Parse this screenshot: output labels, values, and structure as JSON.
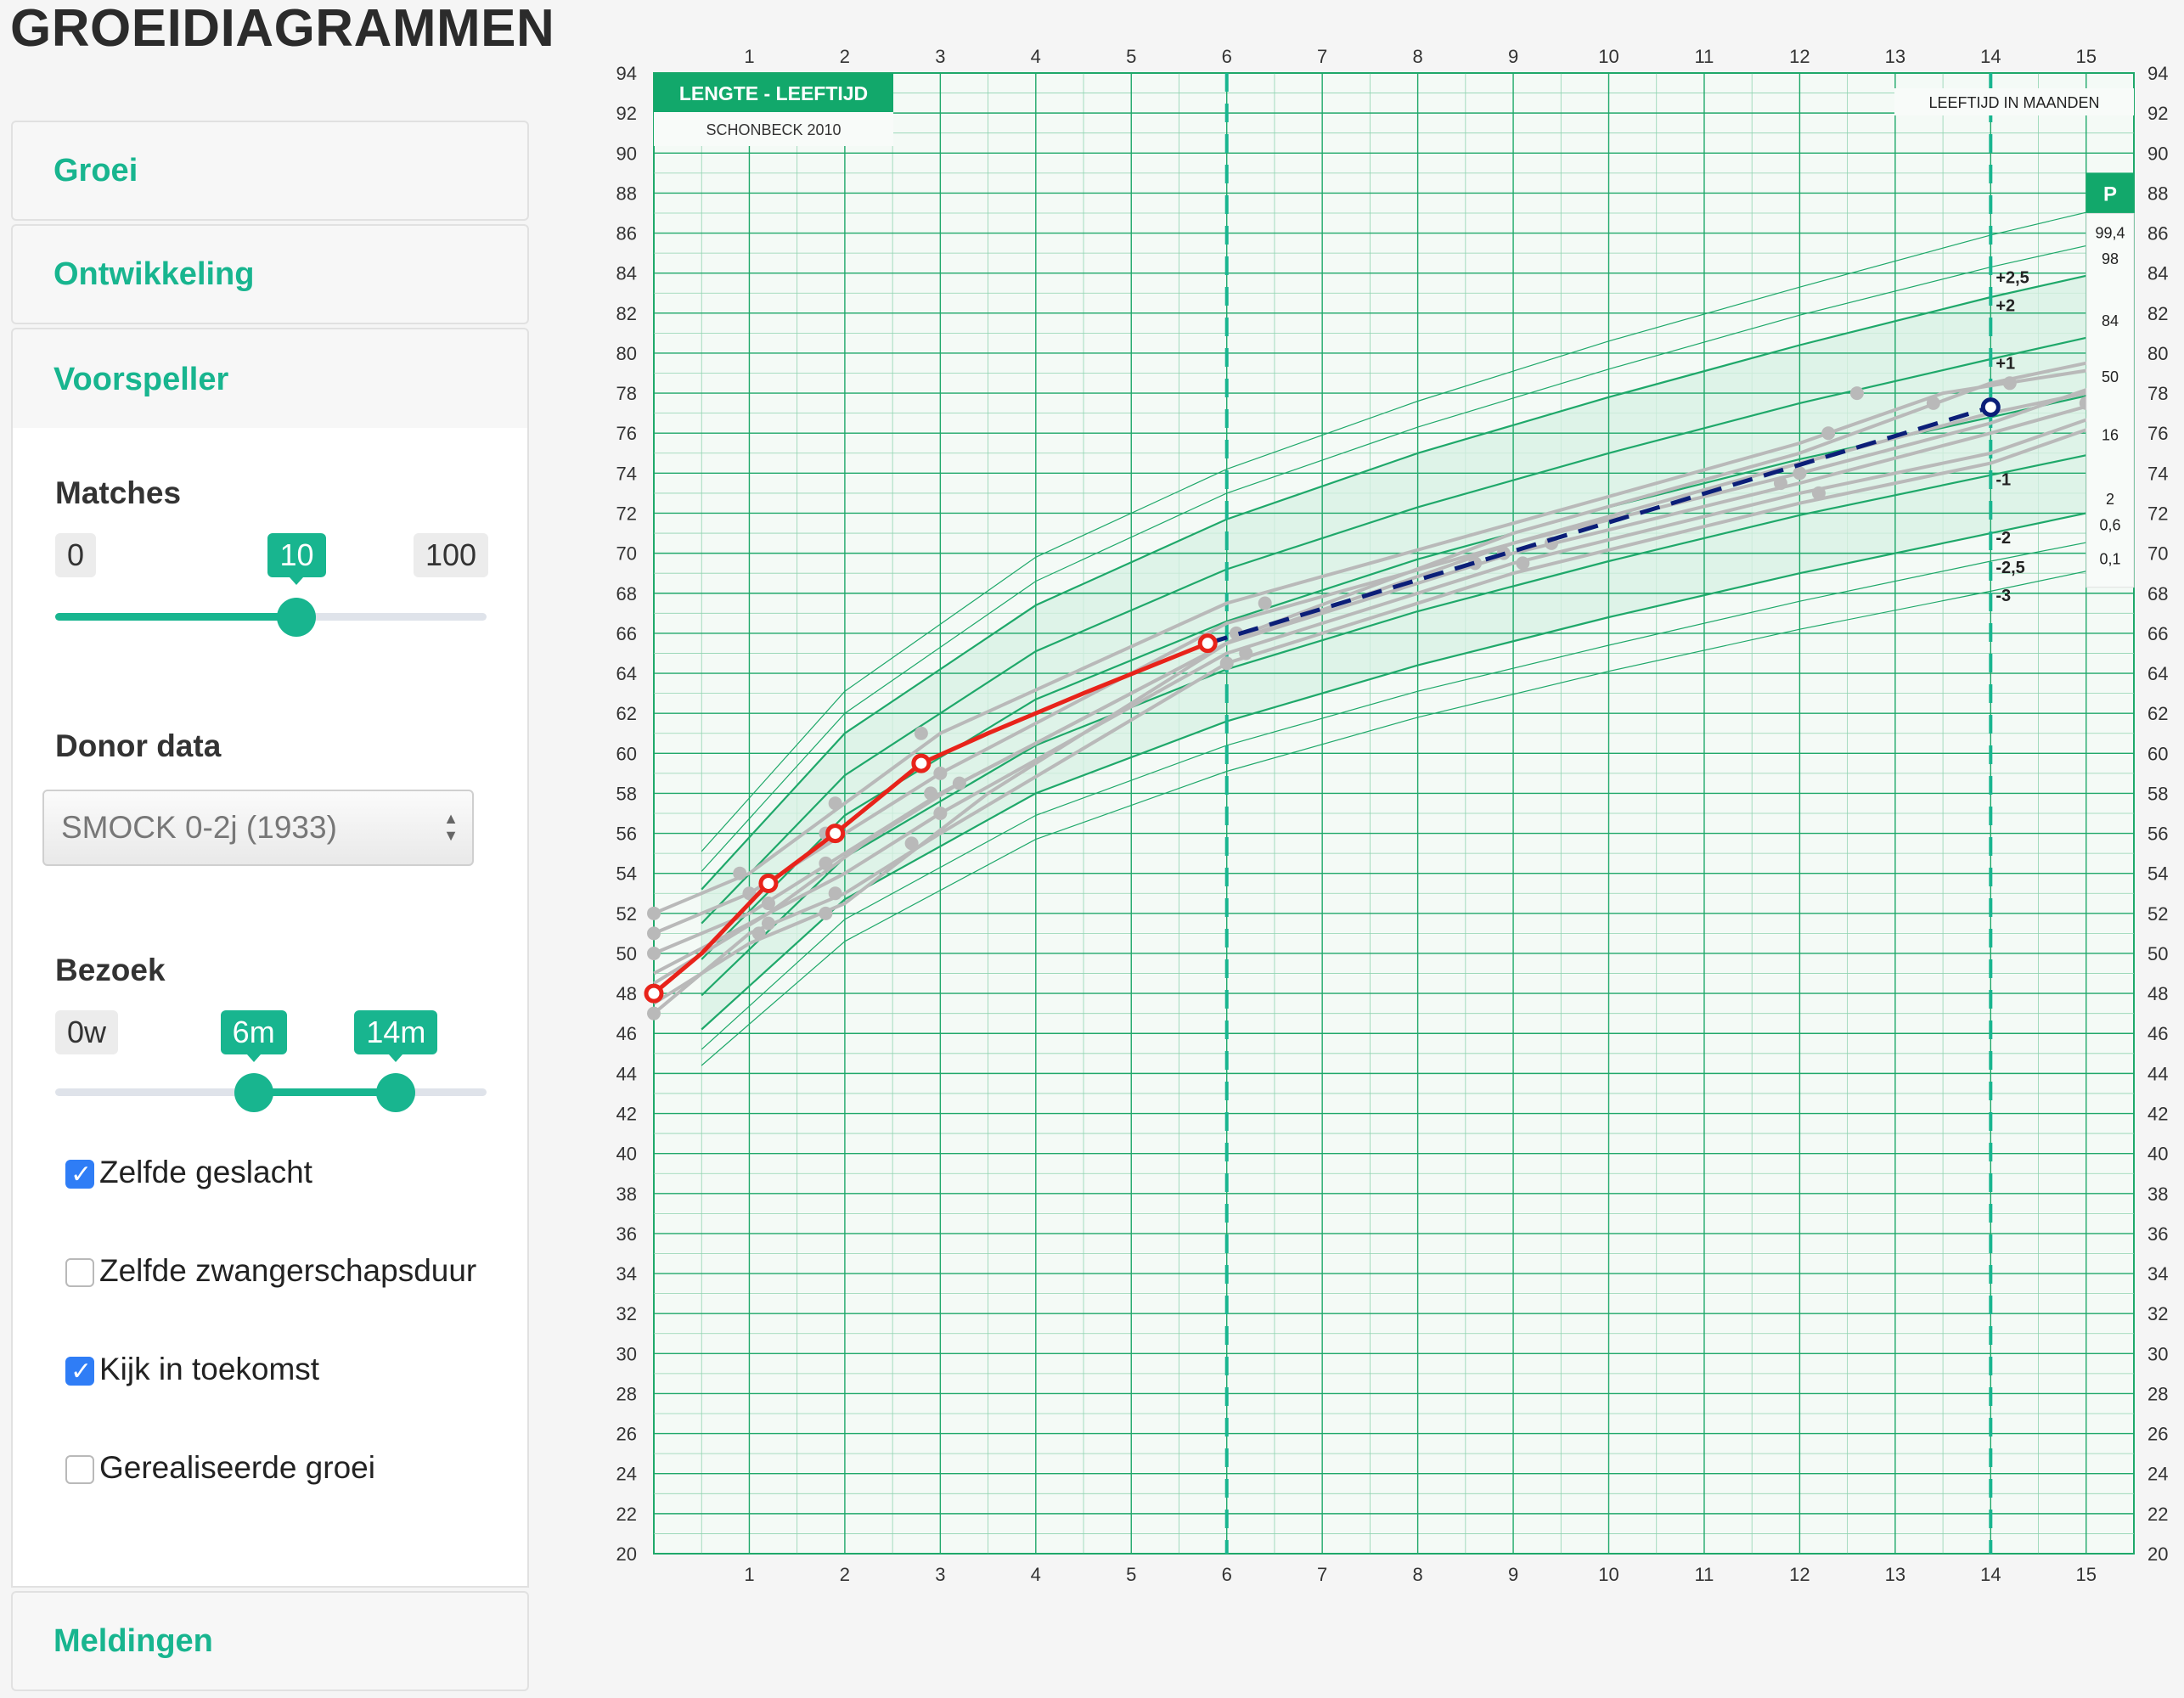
{
  "app_title": "GROEIDIAGRAMMEN",
  "panels": {
    "groei": "Groei",
    "ontwikkeling": "Ontwikkeling",
    "voorspeller": "Voorspeller",
    "meldingen": "Meldingen"
  },
  "matches": {
    "label": "Matches",
    "min": "0",
    "value": "10",
    "max": "100",
    "fraction": 0.56
  },
  "donor": {
    "label": "Donor data",
    "selected": "SMOCK 0-2j (1933)"
  },
  "bezoek": {
    "label": "Bezoek",
    "min": "0w",
    "from": "6m",
    "to": "14m",
    "from_fraction": 0.46,
    "to_fraction": 0.79
  },
  "options": [
    {
      "label": "Zelfde geslacht",
      "checked": true
    },
    {
      "label": "Zelfde zwangerschapsduur",
      "checked": false
    },
    {
      "label": "Kijk in toekomst",
      "checked": true
    },
    {
      "label": "Gerealiseerde groei",
      "checked": false
    }
  ],
  "colors": {
    "accent": "#18b58f",
    "chart_grid": "#1fa86a",
    "chart_fill": "#d7f0e3",
    "observed": "#e8231a",
    "predicted": "#0b1e78",
    "donor": "#b9b9b9"
  },
  "chart_data": {
    "type": "line",
    "title": "LENGTE - LEEFTIJD",
    "subtitle": "SCHONBECK 2010",
    "xlabel": "LEEFTIJD IN MAANDEN",
    "xlim": [
      0,
      15.5
    ],
    "ylim": [
      20,
      94
    ],
    "x_ticks": [
      1,
      2,
      3,
      4,
      5,
      6,
      7,
      8,
      9,
      10,
      11,
      12,
      13,
      14,
      15
    ],
    "y_ticks": [
      20,
      22,
      24,
      26,
      28,
      30,
      32,
      34,
      36,
      38,
      40,
      42,
      44,
      46,
      48,
      50,
      52,
      54,
      56,
      58,
      60,
      62,
      64,
      66,
      68,
      70,
      72,
      74,
      76,
      78,
      80,
      82,
      84,
      86,
      88,
      90,
      92,
      94
    ],
    "visit_markers": [
      6,
      14
    ],
    "sds_labels": [
      {
        "label": "+2,5",
        "y": 83.8
      },
      {
        "label": "+2",
        "y": 82.4
      },
      {
        "label": "+1",
        "y": 79.5
      },
      {
        "label": "-1",
        "y": 73.7
      },
      {
        "label": "-2",
        "y": 70.8
      },
      {
        "label": "-2,5",
        "y": 69.3
      },
      {
        "label": "-3",
        "y": 67.9
      }
    ],
    "percentile_header": "P",
    "percentile_labels": [
      {
        "label": "99,4",
        "y": 86.0
      },
      {
        "label": "98",
        "y": 84.7
      },
      {
        "label": "84",
        "y": 81.6
      },
      {
        "label": "50",
        "y": 78.8
      },
      {
        "label": "16",
        "y": 75.9
      },
      {
        "label": "2",
        "y": 72.7
      },
      {
        "label": "0,6",
        "y": 71.4
      },
      {
        "label": "0,1",
        "y": 69.7
      }
    ],
    "sds_curves": [
      {
        "sds": 3,
        "points": [
          [
            0.5,
            55.1
          ],
          [
            2,
            63.1
          ],
          [
            4,
            69.8
          ],
          [
            6,
            74.2
          ],
          [
            8,
            77.6
          ],
          [
            10,
            80.6
          ],
          [
            12,
            83.3
          ],
          [
            14,
            85.9
          ],
          [
            15.5,
            87.6
          ]
        ]
      },
      {
        "sds": 2.5,
        "points": [
          [
            0.5,
            54.1
          ],
          [
            2,
            62.0
          ],
          [
            4,
            68.6
          ],
          [
            6,
            73.0
          ],
          [
            8,
            76.3
          ],
          [
            10,
            79.2
          ],
          [
            12,
            81.9
          ],
          [
            14,
            84.3
          ],
          [
            15.5,
            85.9
          ]
        ]
      },
      {
        "sds": 2,
        "points": [
          [
            0.5,
            53.2
          ],
          [
            2,
            61.0
          ],
          [
            4,
            67.4
          ],
          [
            6,
            71.7
          ],
          [
            8,
            75.0
          ],
          [
            10,
            77.8
          ],
          [
            12,
            80.4
          ],
          [
            14,
            82.8
          ],
          [
            15.5,
            84.4
          ]
        ]
      },
      {
        "sds": 1,
        "points": [
          [
            0.5,
            51.5
          ],
          [
            2,
            58.9
          ],
          [
            4,
            65.1
          ],
          [
            6,
            69.2
          ],
          [
            8,
            72.3
          ],
          [
            10,
            75.0
          ],
          [
            12,
            77.5
          ],
          [
            14,
            79.7
          ],
          [
            15.5,
            81.3
          ]
        ]
      },
      {
        "sds": 0,
        "points": [
          [
            0.5,
            49.7
          ],
          [
            2,
            56.9
          ],
          [
            4,
            62.7
          ],
          [
            6,
            66.6
          ],
          [
            8,
            69.7
          ],
          [
            10,
            72.3
          ],
          [
            12,
            74.7
          ],
          [
            14,
            76.8
          ],
          [
            15.5,
            78.4
          ]
        ]
      },
      {
        "sds": -1,
        "points": [
          [
            0.5,
            47.9
          ],
          [
            2,
            54.8
          ],
          [
            4,
            60.4
          ],
          [
            6,
            64.2
          ],
          [
            8,
            67.1
          ],
          [
            10,
            69.6
          ],
          [
            12,
            71.9
          ],
          [
            14,
            73.9
          ],
          [
            15.5,
            75.4
          ]
        ]
      },
      {
        "sds": -2,
        "points": [
          [
            0.5,
            46.2
          ],
          [
            2,
            52.7
          ],
          [
            4,
            58.0
          ],
          [
            6,
            61.6
          ],
          [
            8,
            64.4
          ],
          [
            10,
            66.8
          ],
          [
            12,
            69.0
          ],
          [
            14,
            71.0
          ],
          [
            15.5,
            72.5
          ]
        ]
      },
      {
        "sds": -2.5,
        "points": [
          [
            0.5,
            45.2
          ],
          [
            2,
            51.7
          ],
          [
            4,
            56.9
          ],
          [
            6,
            60.4
          ],
          [
            8,
            63.1
          ],
          [
            10,
            65.4
          ],
          [
            12,
            67.6
          ],
          [
            14,
            69.6
          ],
          [
            15.5,
            71.0
          ]
        ]
      },
      {
        "sds": -3,
        "points": [
          [
            0.5,
            44.4
          ],
          [
            2,
            50.6
          ],
          [
            4,
            55.7
          ],
          [
            6,
            59.1
          ],
          [
            8,
            61.8
          ],
          [
            10,
            64.1
          ],
          [
            12,
            66.2
          ],
          [
            14,
            68.1
          ],
          [
            15.5,
            69.6
          ]
        ]
      }
    ],
    "series": [
      {
        "name": "observed",
        "points": [
          [
            0,
            48.0
          ],
          [
            0.5,
            50.0
          ],
          [
            1.2,
            53.5
          ],
          [
            1.9,
            56.0
          ],
          [
            2.8,
            59.5
          ],
          [
            3.5,
            61.0
          ],
          [
            4.5,
            63.0
          ],
          [
            5.8,
            65.5
          ]
        ],
        "markers": [
          [
            0,
            48.0
          ],
          [
            1.2,
            53.5
          ],
          [
            1.9,
            56.0
          ],
          [
            2.8,
            59.5
          ],
          [
            5.8,
            65.5
          ]
        ]
      },
      {
        "name": "predicted",
        "points": [
          [
            5.8,
            65.5
          ],
          [
            14,
            77.3
          ]
        ],
        "markers": [
          [
            14,
            77.3
          ]
        ]
      }
    ],
    "donor_curves": [
      [
        [
          0,
          52.0
        ],
        [
          1.0,
          54.0
        ],
        [
          2.0,
          57.5
        ],
        [
          3.0,
          61.0
        ],
        [
          6.0,
          67.5
        ],
        [
          9.0,
          71.5
        ],
        [
          12.0,
          75.5
        ],
        [
          13.5,
          78.0
        ],
        [
          15.5,
          79.5
        ]
      ],
      [
        [
          0,
          51.0
        ],
        [
          1.0,
          53.0
        ],
        [
          2.0,
          56.0
        ],
        [
          3.0,
          59.0
        ],
        [
          6.0,
          66.5
        ],
        [
          9.0,
          70.5
        ],
        [
          12.0,
          74.5
        ],
        [
          14.0,
          77.0
        ],
        [
          15.5,
          78.5
        ]
      ],
      [
        [
          0,
          50.0
        ],
        [
          1.0,
          52.0
        ],
        [
          2.0,
          55.0
        ],
        [
          3.0,
          58.0
        ],
        [
          6.0,
          65.5
        ],
        [
          9.0,
          70.0
        ],
        [
          12.0,
          73.5
        ],
        [
          14.0,
          76.0
        ],
        [
          15.5,
          78.0
        ]
      ],
      [
        [
          0,
          49.0
        ],
        [
          1.0,
          51.5
        ],
        [
          2.0,
          54.0
        ],
        [
          3.0,
          57.0
        ],
        [
          6.0,
          65.0
        ],
        [
          9.0,
          69.5
        ],
        [
          12.0,
          73.0
        ],
        [
          14.0,
          75.0
        ],
        [
          15.5,
          77.5
        ]
      ],
      [
        [
          0,
          47.0
        ],
        [
          1.0,
          51.0
        ],
        [
          2.0,
          53.0
        ],
        [
          3.0,
          56.0
        ],
        [
          6.0,
          64.5
        ],
        [
          9.0,
          69.0
        ],
        [
          12.0,
          72.5
        ],
        [
          14.0,
          74.5
        ],
        [
          15.5,
          77.0
        ]
      ],
      [
        [
          0,
          47.5
        ],
        [
          1.0,
          50.5
        ],
        [
          2.0,
          52.5
        ],
        [
          3.5,
          58.0
        ],
        [
          6.0,
          65.5
        ],
        [
          9.0,
          70.5
        ],
        [
          12.0,
          74.0
        ],
        [
          14.0,
          76.5
        ],
        [
          15.5,
          79.0
        ]
      ],
      [
        [
          0,
          48.5
        ],
        [
          1.2,
          52.0
        ],
        [
          2.2,
          55.5
        ],
        [
          3.2,
          58.5
        ],
        [
          6.2,
          66.0
        ],
        [
          9.0,
          71.0
        ],
        [
          12.0,
          75.0
        ],
        [
          14.0,
          78.5
        ],
        [
          15.5,
          80.0
        ]
      ]
    ],
    "donor_points": [
      [
        0,
        52.0
      ],
      [
        0,
        51.0
      ],
      [
        0,
        50.0
      ],
      [
        0,
        47.0
      ],
      [
        0.9,
        54.0
      ],
      [
        1.0,
        53.0
      ],
      [
        1.2,
        52.5
      ],
      [
        1.2,
        51.5
      ],
      [
        1.1,
        51.0
      ],
      [
        1.9,
        57.5
      ],
      [
        1.8,
        56.0
      ],
      [
        1.8,
        54.5
      ],
      [
        1.9,
        53.0
      ],
      [
        1.8,
        52.0
      ],
      [
        2.8,
        61.0
      ],
      [
        3.0,
        59.0
      ],
      [
        2.9,
        58.0
      ],
      [
        3.0,
        57.0
      ],
      [
        2.7,
        55.5
      ],
      [
        3.2,
        58.5
      ],
      [
        6.1,
        66.0
      ],
      [
        6.2,
        65.0
      ],
      [
        6.4,
        67.5
      ],
      [
        6.0,
        64.5
      ],
      [
        8.6,
        69.5
      ],
      [
        8.9,
        70.0
      ],
      [
        9.1,
        69.5
      ],
      [
        9.4,
        70.5
      ],
      [
        12.0,
        74.0
      ],
      [
        12.2,
        73.0
      ],
      [
        11.8,
        73.5
      ],
      [
        12.6,
        78.0
      ],
      [
        12.3,
        76.0
      ],
      [
        13.4,
        77.5
      ],
      [
        14.2,
        78.5
      ],
      [
        15.0,
        77.5
      ],
      [
        15.3,
        78.0
      ]
    ]
  }
}
